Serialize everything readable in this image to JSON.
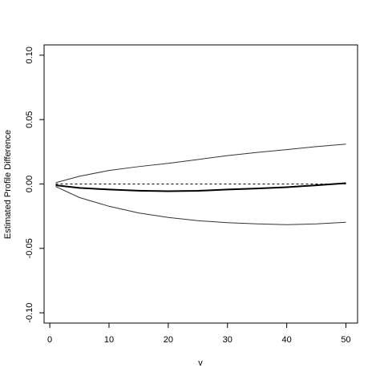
{
  "chart_data": {
    "type": "line",
    "x_label": "v",
    "y_label": "Estimated Profile Difference",
    "x": [
      1,
      5,
      10,
      15,
      20,
      25,
      30,
      35,
      40,
      45,
      50
    ],
    "series": [
      {
        "color": "#333333",
        "line_width": 1,
        "values": [
          0.001,
          0.006,
          0.0105,
          0.0135,
          0.016,
          0.019,
          0.022,
          0.0245,
          0.0267,
          0.029,
          0.031
        ]
      },
      {
        "color": "#000000",
        "line_width": 2,
        "values": [
          -0.001,
          -0.003,
          -0.0043,
          -0.0052,
          -0.0056,
          -0.0053,
          -0.0043,
          -0.0035,
          -0.0025,
          -0.001,
          0.0006
        ]
      },
      {
        "color": "#333333",
        "line_width": 1,
        "values": [
          -0.002,
          -0.0105,
          -0.0173,
          -0.0225,
          -0.026,
          -0.0285,
          -0.03,
          -0.031,
          -0.0316,
          -0.031,
          -0.0297
        ]
      }
    ],
    "reference_y": 0,
    "xlim": [
      -0.96,
      51.96
    ],
    "ylim": [
      -0.108,
      0.108
    ],
    "xticks": [
      0,
      10,
      20,
      30,
      40,
      50
    ],
    "yticks": [
      {
        "value": -0.1,
        "label": "-0.10"
      },
      {
        "value": -0.05,
        "label": "-0.05"
      },
      {
        "value": 0,
        "label": "0.00"
      },
      {
        "value": 0.05,
        "label": "0.05"
      },
      {
        "value": 0.1,
        "label": "0.10"
      }
    ]
  }
}
